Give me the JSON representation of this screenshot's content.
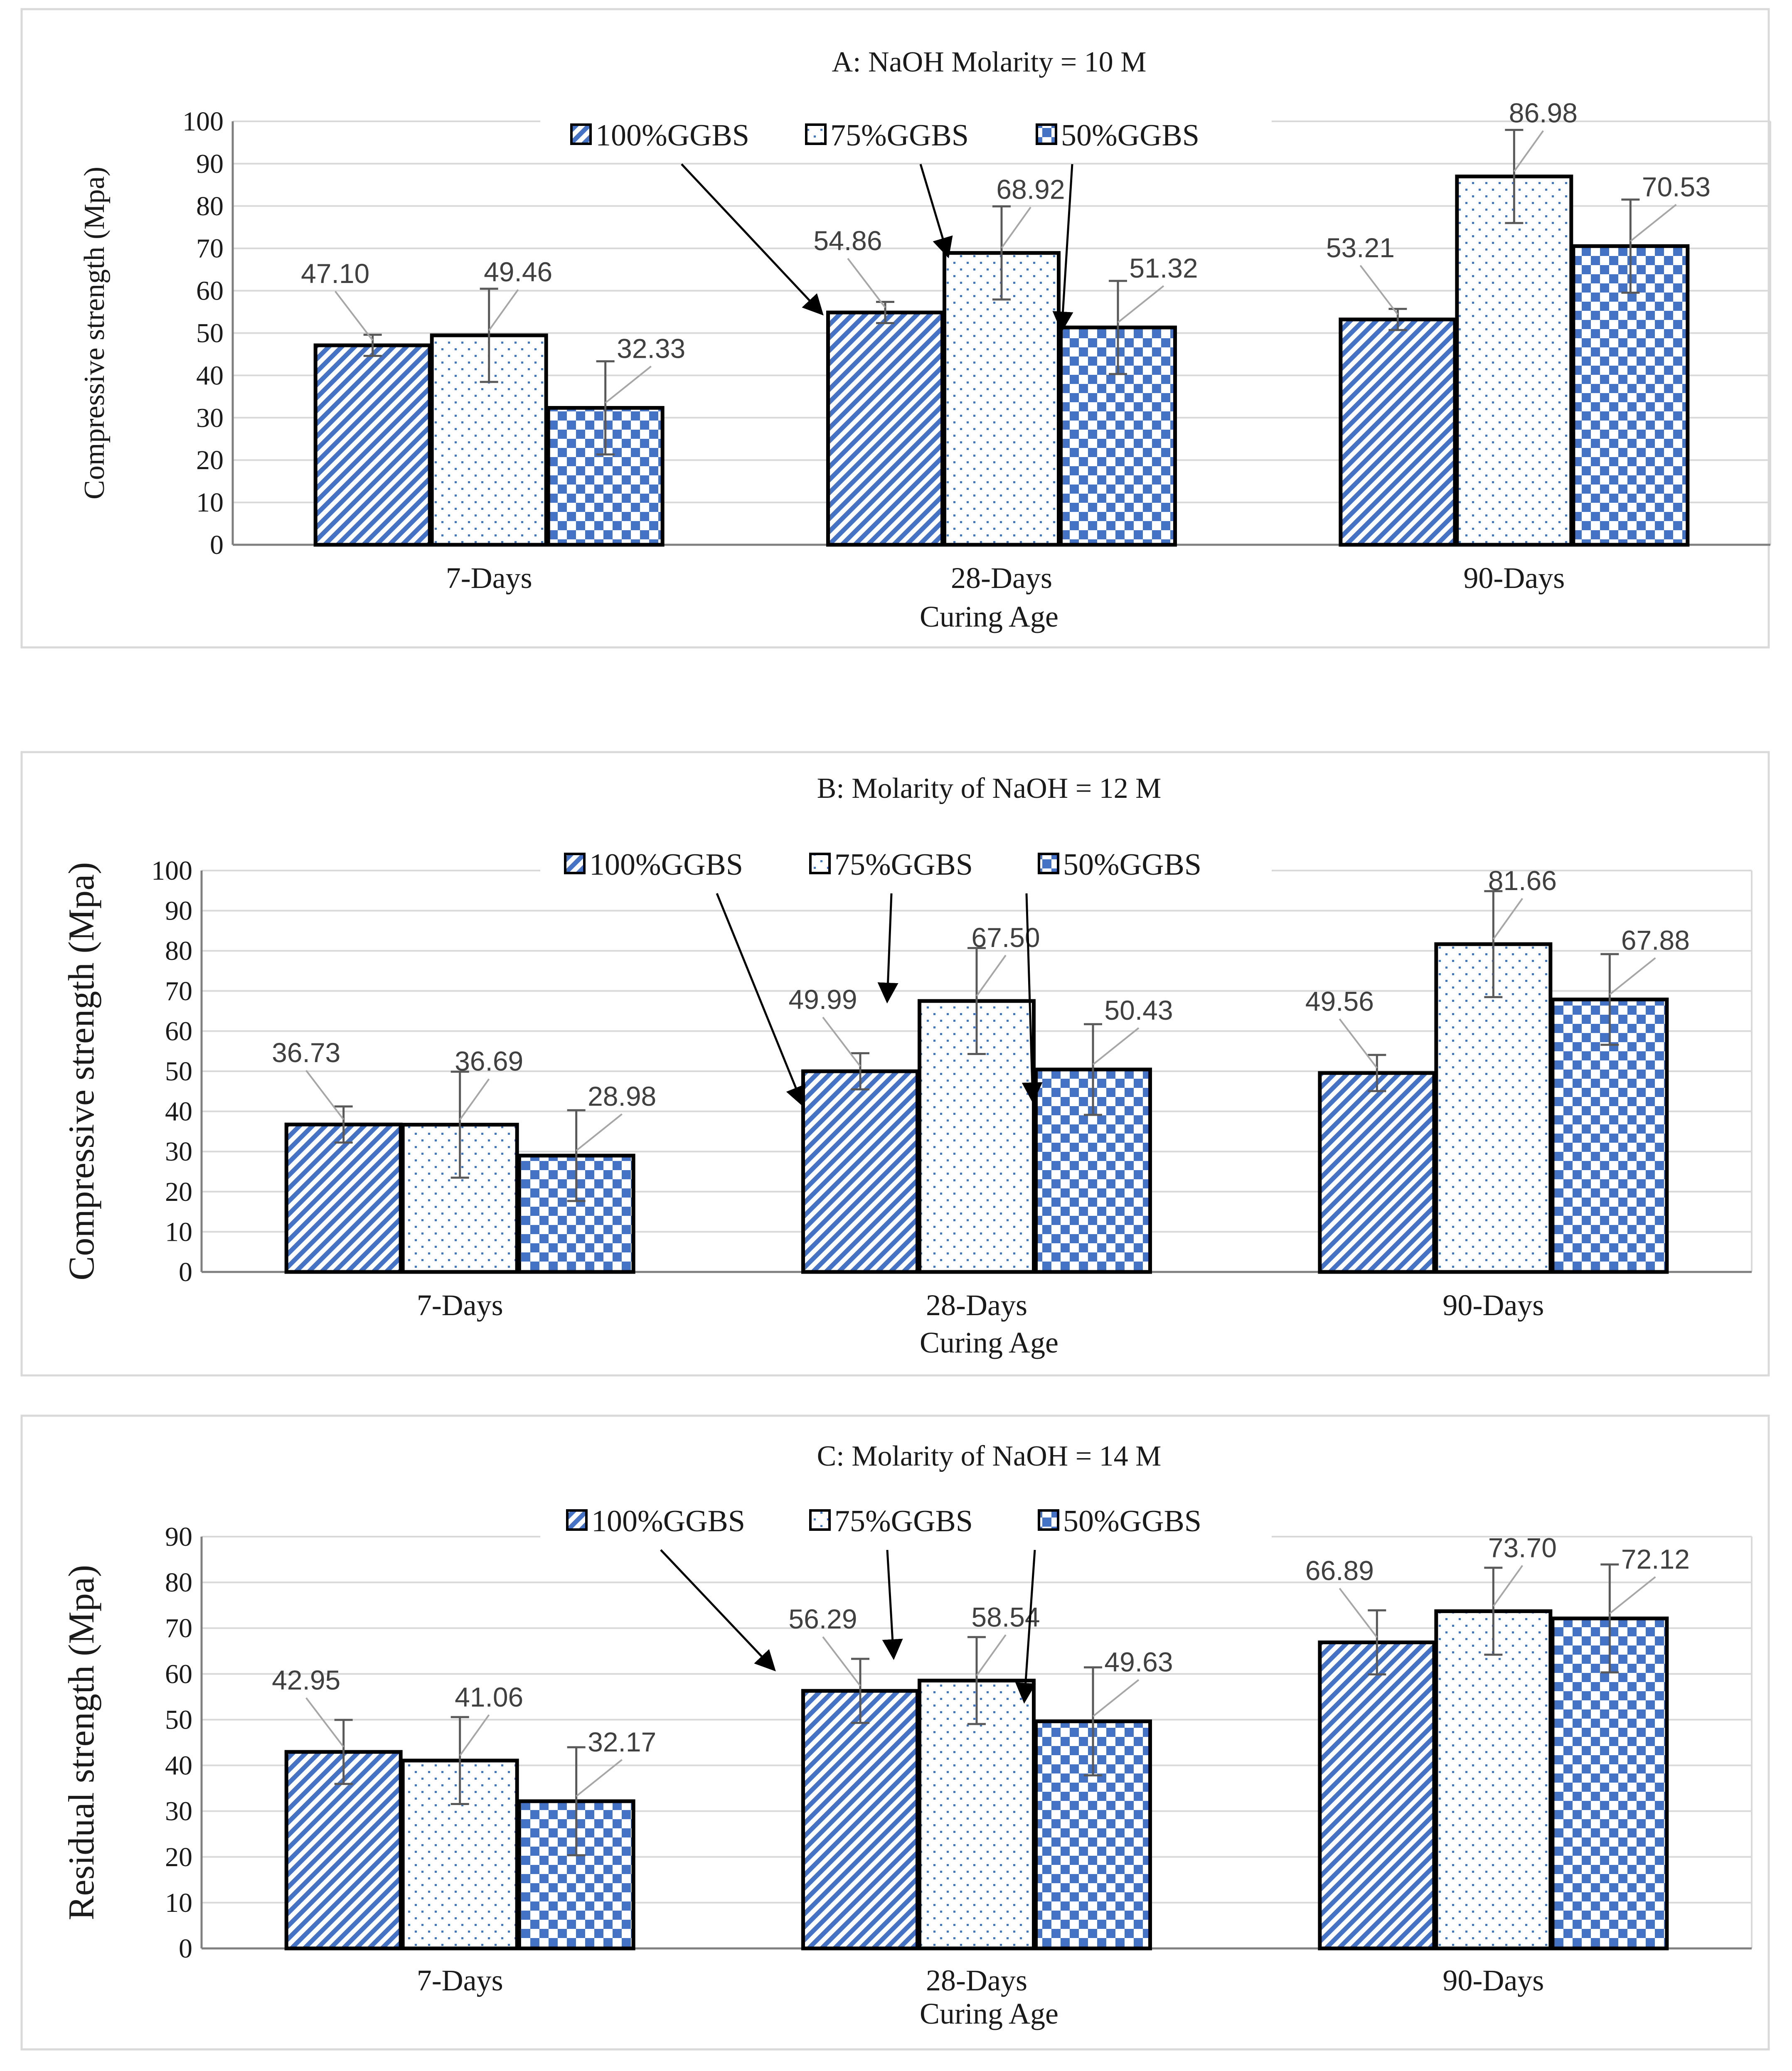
{
  "colors": {
    "pattern_blue": "#4472c4",
    "bar_outline": "#000000",
    "grid": "#d9d9d9",
    "axis": "#7f7f7f",
    "panel_border": "#d9d9d9",
    "errorbar": "#595959",
    "leader": "#a6a6a6"
  },
  "legend": [
    {
      "key": "g100",
      "label": "100%GGBS",
      "pattern": "diagonal-stripes"
    },
    {
      "key": "g75",
      "label": "75%GGBS",
      "pattern": "dots"
    },
    {
      "key": "g50",
      "label": "50%GGBS",
      "pattern": "checkerboard"
    }
  ],
  "chart_data": [
    {
      "type": "bar",
      "title": "A: NaOH Molarity = 10 M",
      "xlabel": "Curing Age",
      "ylabel": "Compressive strength (Mpa)",
      "ylim": [
        0,
        100
      ],
      "ytick_step": 10,
      "grid": true,
      "legend_position": "top",
      "categories": [
        "7-Days",
        "28-Days",
        "90-Days"
      ],
      "series": [
        {
          "name": "100%GGBS",
          "values": [
            47.1,
            54.86,
            53.21
          ],
          "errors": [
            2.5,
            2.5,
            2.5
          ],
          "labels": [
            "47.10",
            "54.86",
            "53.21"
          ]
        },
        {
          "name": "75%GGBS",
          "values": [
            49.46,
            68.92,
            86.98
          ],
          "errors": [
            11.0,
            11.0,
            11.0
          ],
          "labels": [
            "49.46",
            "68.92",
            "86.98"
          ]
        },
        {
          "name": "50%GGBS",
          "values": [
            32.33,
            51.32,
            70.53
          ],
          "errors": [
            11.0,
            11.0,
            11.0
          ],
          "labels": [
            "32.33",
            "51.32",
            "70.53"
          ]
        }
      ]
    },
    {
      "type": "bar",
      "title": "B: Molarity of NaOH = 12 M",
      "xlabel": "Curing Age",
      "ylabel": "Compressive strength (Mpa)",
      "ylim": [
        0,
        100
      ],
      "ytick_step": 10,
      "grid": true,
      "legend_position": "top",
      "categories": [
        "7-Days",
        "28-Days",
        "90-Days"
      ],
      "series": [
        {
          "name": "100%GGBS",
          "values": [
            36.73,
            49.99,
            49.56
          ],
          "errors": [
            4.5,
            4.5,
            4.5
          ],
          "labels": [
            "36.73",
            "49.99",
            "49.56"
          ]
        },
        {
          "name": "75%GGBS",
          "values": [
            36.69,
            67.5,
            81.66
          ],
          "errors": [
            13.2,
            13.2,
            13.2
          ],
          "labels": [
            "36.69",
            "67.50",
            "81.66"
          ]
        },
        {
          "name": "50%GGBS",
          "values": [
            28.98,
            50.43,
            67.88
          ],
          "errors": [
            11.3,
            11.3,
            11.3
          ],
          "labels": [
            "28.98",
            "50.43",
            "67.88"
          ]
        }
      ]
    },
    {
      "type": "bar",
      "title": "C: Molarity of NaOH = 14 M",
      "xlabel": "Curing Age",
      "ylabel": "Residual strength (Mpa)",
      "ylim": [
        0,
        90
      ],
      "ytick_step": 10,
      "grid": true,
      "legend_position": "top",
      "categories": [
        "7-Days",
        "28-Days",
        "90-Days"
      ],
      "series": [
        {
          "name": "100%GGBS",
          "values": [
            42.95,
            56.29,
            66.89
          ],
          "errors": [
            7.0,
            7.0,
            7.0
          ],
          "labels": [
            "42.95",
            "56.29",
            "66.89"
          ]
        },
        {
          "name": "75%GGBS",
          "values": [
            41.06,
            58.54,
            73.7
          ],
          "errors": [
            9.5,
            9.5,
            9.5
          ],
          "labels": [
            "41.06",
            "58.54",
            "73.70"
          ]
        },
        {
          "name": "50%GGBS",
          "values": [
            32.17,
            49.63,
            72.12
          ],
          "errors": [
            11.8,
            11.8,
            11.8
          ],
          "labels": [
            "32.17",
            "49.63",
            "72.12"
          ]
        }
      ]
    }
  ]
}
